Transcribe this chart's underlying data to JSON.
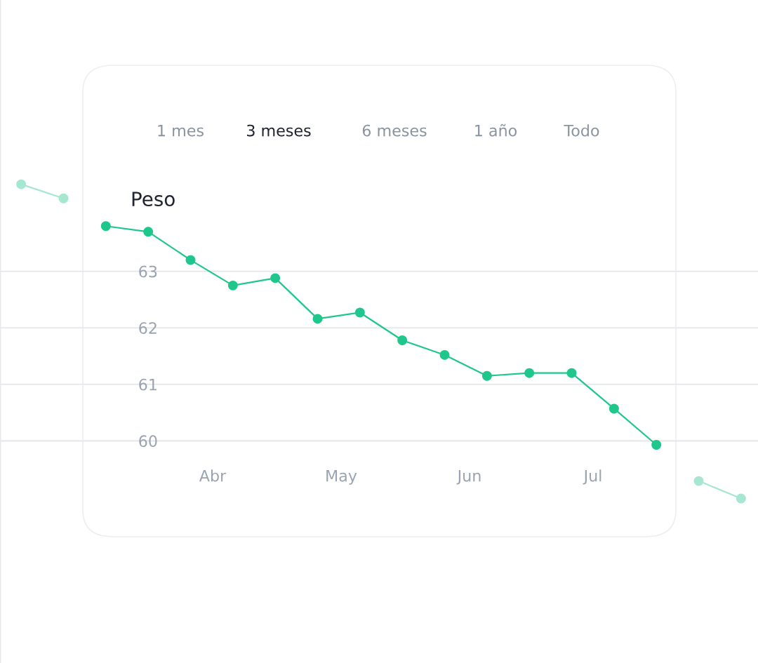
{
  "chart_data": {
    "type": "line",
    "title": "Peso",
    "annotations": [
      "1 mes",
      "3 meses",
      "6 meses",
      "1 año",
      "Todo",
      "Abr",
      "May",
      "Jun",
      "Jul"
    ],
    "categories": [
      null,
      null,
      null,
      null,
      null,
      null,
      null,
      null,
      null,
      null,
      null,
      null,
      null,
      null,
      null,
      null,
      null,
      null
    ],
    "ylim": [
      56.07,
      67.8
    ],
    "yticks": [
      60,
      61,
      62,
      63
    ],
    "grid": "y",
    "marker": "circle",
    "line_style": "solid",
    "series": [
      {
        "color": "#1fc78c",
        "values": [
          null,
          null,
          63.8,
          63.7,
          63.2,
          62.75,
          62.88,
          62.16,
          62.27,
          61.78,
          61.52,
          61.15,
          61.2,
          61.2,
          60.57,
          59.93,
          null,
          null
        ]
      },
      {
        "color": "#a5e7cf",
        "values": [
          64.54,
          64.29,
          null,
          null,
          null,
          null,
          null,
          null,
          null,
          null,
          null,
          null,
          null,
          null,
          null,
          null,
          null,
          null
        ]
      },
      {
        "color": "#a5e7cf",
        "values": [
          null,
          null,
          null,
          null,
          null,
          null,
          null,
          null,
          null,
          null,
          null,
          null,
          null,
          null,
          null,
          null,
          59.29,
          58.98
        ]
      }
    ]
  }
}
